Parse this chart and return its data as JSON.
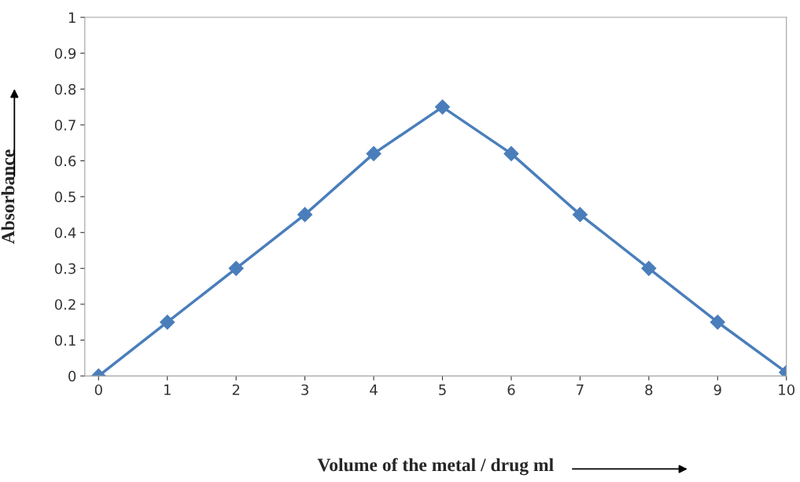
{
  "chart_data": {
    "type": "line",
    "xlabel": "Volume of the metal / drug ml",
    "ylabel": "Absorbance",
    "x": [
      0,
      1,
      2,
      3,
      4,
      5,
      6,
      7,
      8,
      9,
      10
    ],
    "series": [
      {
        "color": "#4a7ebb",
        "values": [
          0,
          0.15,
          0.3,
          0.45,
          0.62,
          0.75,
          0.62,
          0.45,
          0.3,
          0.15,
          0.01
        ]
      }
    ],
    "xlim": [
      -0.2,
      10
    ],
    "xticks": [
      0,
      1,
      2,
      3,
      4,
      5,
      6,
      7,
      8,
      9,
      10
    ],
    "ylim": [
      0,
      1
    ],
    "yticks": [
      0,
      0.1,
      0.2,
      0.3,
      0.4,
      0.5,
      0.6,
      0.7,
      0.8,
      0.9,
      1
    ],
    "marker": "diamond",
    "line_style": "solid",
    "grid": false,
    "legend": false
  }
}
